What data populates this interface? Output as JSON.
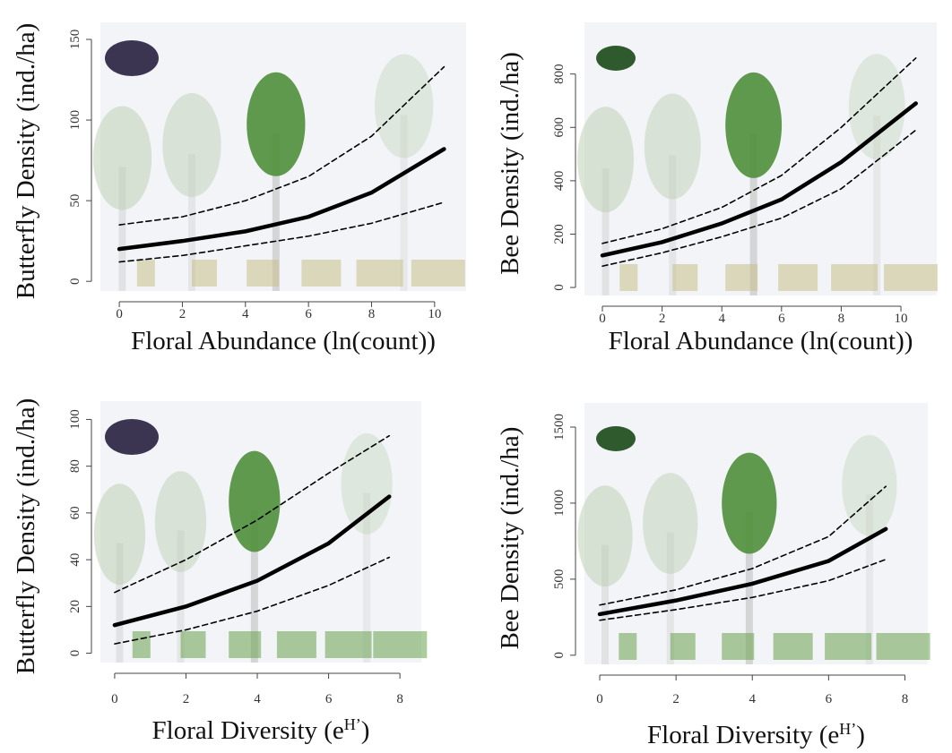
{
  "chart_data": [
    {
      "type": "line",
      "ylabel": "Butterfly Density (ind./ha)",
      "xlabel": [
        "Floral Abundance (ln(count))"
      ],
      "x": [
        0,
        2,
        4,
        6,
        8,
        10.3
      ],
      "xlim": [
        -0.6,
        11
      ],
      "xticks": [
        0,
        2,
        4,
        6,
        8,
        10
      ],
      "ylim": [
        -6,
        155
      ],
      "yticks": [
        0,
        50,
        100,
        150
      ],
      "series": [
        {
          "color": "#000000",
          "dash": false,
          "values": [
            20,
            25,
            31,
            40,
            55,
            82
          ]
        },
        {
          "color": "#000000",
          "dash": true,
          "values": [
            35,
            40,
            50,
            65,
            90,
            133
          ]
        },
        {
          "color": "#000000",
          "dash": true,
          "values": [
            12,
            16,
            22,
            28,
            36,
            49
          ]
        }
      ]
    },
    {
      "type": "line",
      "ylabel": "Bee Density (ind./ha)",
      "xlabel": [
        "Floral Abundance (ln(count))"
      ],
      "x": [
        0,
        2,
        4,
        6,
        8,
        10.5
      ],
      "xlim": [
        -0.6,
        11.2
      ],
      "xticks": [
        0,
        2,
        4,
        6,
        8,
        10
      ],
      "ylim": [
        -30,
        960
      ],
      "yticks": [
        0,
        200,
        400,
        600,
        800
      ],
      "series": [
        {
          "color": "#000000",
          "dash": false,
          "values": [
            120,
            170,
            240,
            330,
            470,
            690
          ]
        },
        {
          "color": "#000000",
          "dash": true,
          "values": [
            165,
            220,
            300,
            420,
            600,
            860
          ]
        },
        {
          "color": "#000000",
          "dash": true,
          "values": [
            80,
            130,
            190,
            260,
            370,
            590
          ]
        }
      ]
    },
    {
      "type": "line",
      "ylabel": "Butterfly Density (ind./ha)",
      "xlabel": [
        "Floral Diversity (e",
        "H’",
        ")"
      ],
      "x": [
        0,
        2,
        4,
        6,
        7.7
      ],
      "xlim": [
        -0.4,
        8.6
      ],
      "xticks": [
        0,
        2,
        4,
        6,
        8
      ],
      "ylim": [
        -4,
        104
      ],
      "yticks": [
        0,
        20,
        40,
        60,
        80,
        100
      ],
      "series": [
        {
          "color": "#000000",
          "dash": false,
          "values": [
            12,
            20,
            31,
            47,
            67
          ]
        },
        {
          "color": "#000000",
          "dash": true,
          "values": [
            26,
            40,
            57,
            77,
            93
          ]
        },
        {
          "color": "#000000",
          "dash": true,
          "values": [
            4,
            10,
            18,
            29,
            41
          ]
        }
      ]
    },
    {
      "type": "line",
      "ylabel": "Bee Density (ind./ha)",
      "xlabel": [
        "Floral Diversity (e",
        "H’",
        ")"
      ],
      "x": [
        0,
        2,
        4,
        6,
        7.5
      ],
      "xlim": [
        -0.4,
        8.6
      ],
      "xticks": [
        0,
        2,
        4,
        6,
        8
      ],
      "ylim": [
        -60,
        1600
      ],
      "yticks": [
        0,
        500,
        1000,
        1500
      ],
      "series": [
        {
          "color": "#000000",
          "dash": false,
          "values": [
            270,
            360,
            470,
            620,
            830
          ]
        },
        {
          "color": "#000000",
          "dash": true,
          "values": [
            330,
            430,
            570,
            780,
            1110
          ]
        },
        {
          "color": "#000000",
          "dash": true,
          "values": [
            230,
            300,
            380,
            490,
            630
          ]
        }
      ]
    }
  ]
}
